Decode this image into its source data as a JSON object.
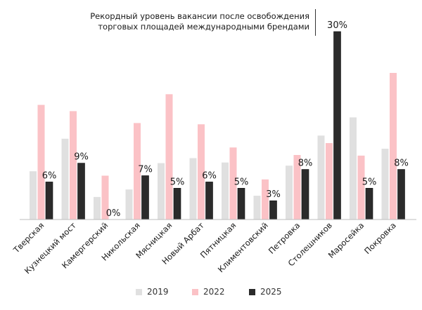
{
  "chart_data": {
    "type": "bar",
    "title": "Рекордный уровень вакансии после освобождения торговых площадей международными брендами",
    "title_lines": [
      "Рекордный уровень вакансии после освобождения",
      "торговых площадей международными брендами"
    ],
    "categories": [
      "Тверская",
      "Кузнецкий мост",
      "Камергерский",
      "Никольская",
      "Мясницкая",
      "Новый Арбат",
      "Пятницкая",
      "Климентовский",
      "Петровка",
      "Столешников",
      "Маросейка",
      "Покровка"
    ],
    "series": [
      {
        "name": "2019",
        "color": "#e0e0e0",
        "values": [
          7.7,
          12.9,
          3.6,
          4.8,
          9.0,
          9.8,
          9.1,
          3.8,
          8.6,
          13.4,
          16.3,
          11.3
        ]
      },
      {
        "name": "2022",
        "color": "#fbc2c6",
        "values": [
          18.3,
          17.3,
          7.0,
          15.4,
          20.0,
          15.2,
          11.5,
          6.4,
          10.3,
          12.2,
          10.2,
          23.4
        ]
      },
      {
        "name": "2025",
        "color": "#2b2b2b",
        "values": [
          6,
          9,
          0,
          7,
          5,
          6,
          5,
          3,
          8,
          30,
          5,
          8
        ]
      }
    ],
    "value_labels_2025": [
      "6%",
      "9%",
      "0%",
      "7%",
      "5%",
      "6%",
      "5%",
      "3%",
      "8%",
      "30%",
      "5%",
      "8%"
    ],
    "ylim": [
      0,
      30
    ],
    "xlabel": "",
    "ylabel": "",
    "grid": false,
    "legend_position": "bottom"
  }
}
